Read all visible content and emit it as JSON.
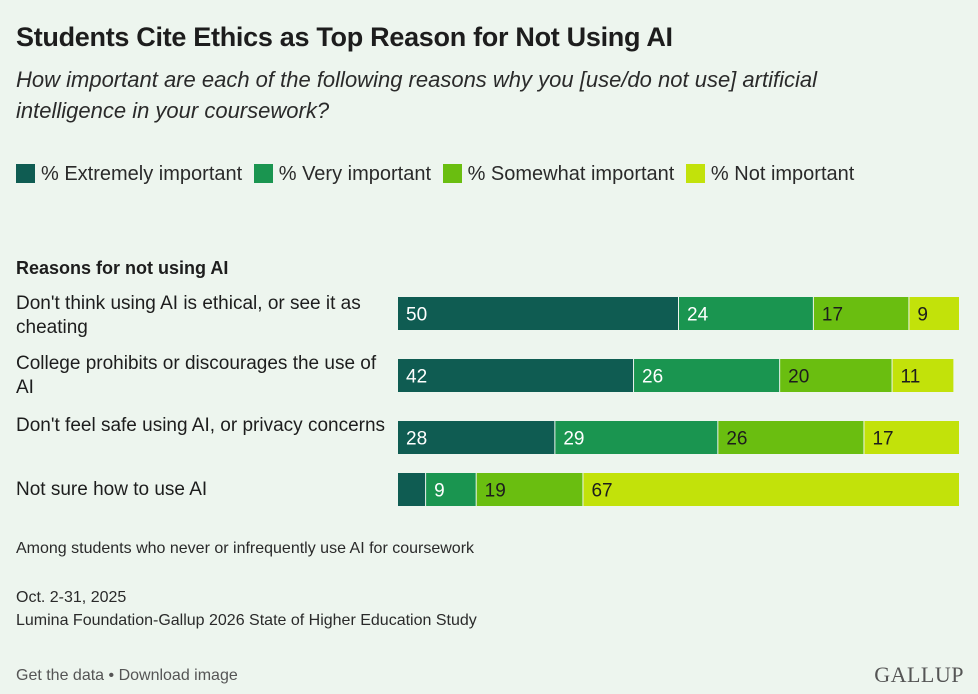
{
  "title": "Students Cite Ethics as Top Reason for Not Using AI",
  "subtitle": "How important are each of the following reasons why you [use/do not use] artificial intelligence in your coursework?",
  "colors": {
    "extremely": "#0f5c52",
    "very": "#1a9550",
    "somewhat": "#6abe10",
    "not": "#c2e20a"
  },
  "legend": [
    {
      "label": "% Extremely important",
      "color": "#0f5c52"
    },
    {
      "label": "% Very important",
      "color": "#1a9550"
    },
    {
      "label": "% Somewhat important",
      "color": "#6abe10"
    },
    {
      "label": "% Not important",
      "color": "#c2e20a"
    }
  ],
  "axis_title": "Reasons for not using AI",
  "chart_data": {
    "type": "bar",
    "orientation": "horizontal",
    "stacked": true,
    "categories": [
      "Don't think using AI is ethical, or see it as cheating",
      "College prohibits or discourages the use of AI",
      "Don't feel safe using AI, or privacy concerns",
      "Not sure how to use AI"
    ],
    "series": [
      {
        "name": "% Extremely important",
        "values": [
          50,
          42,
          28,
          5
        ],
        "labels": [
          "50",
          "42",
          "28",
          ""
        ]
      },
      {
        "name": "% Very important",
        "values": [
          24,
          26,
          29,
          9
        ],
        "labels": [
          "24",
          "26",
          "29",
          "9"
        ]
      },
      {
        "name": "% Somewhat important",
        "values": [
          17,
          20,
          26,
          19
        ],
        "labels": [
          "17",
          "20",
          "26",
          "19"
        ]
      },
      {
        "name": "% Not important",
        "values": [
          9,
          11,
          17,
          67
        ],
        "labels": [
          "9",
          "11",
          "17",
          "67"
        ]
      }
    ],
    "xlim": [
      0,
      100
    ]
  },
  "note": "Among students who never or infrequently use AI for coursework",
  "date": "Oct. 2-31, 2025",
  "source": "Lumina Foundation-Gallup 2026 State of Higher Education Study",
  "footer": {
    "get_data": "Get the data",
    "separator": " • ",
    "download": "Download image"
  },
  "logo": "GALLUP"
}
